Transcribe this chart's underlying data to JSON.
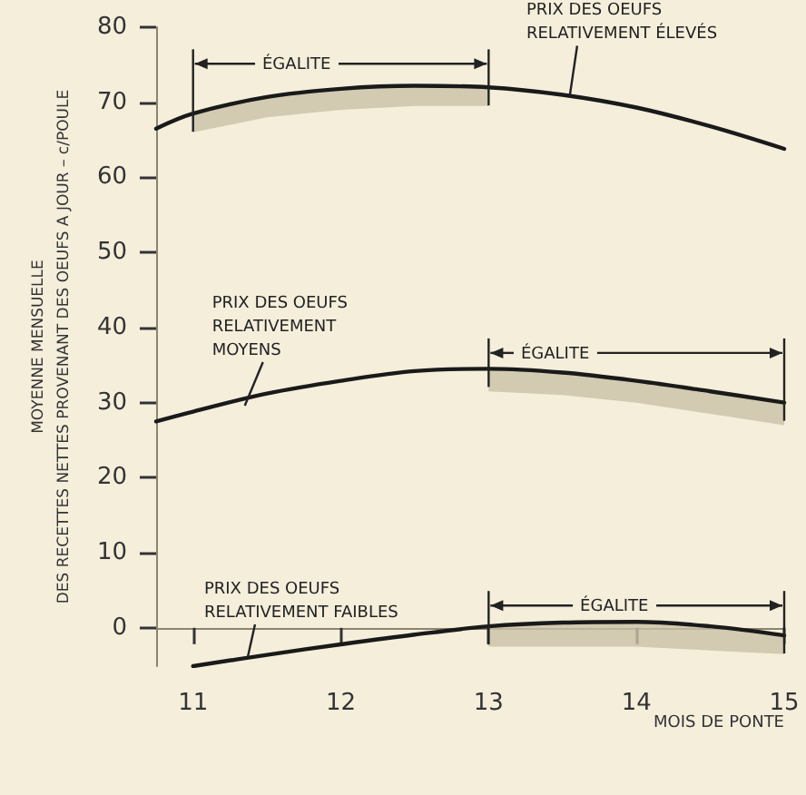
{
  "chart_data": {
    "type": "line",
    "xlabel": "MOIS DE PONTE",
    "ylabel": "MOYENNE MENSUELLE\nDES RECETTES NETTES PROVENANT DES OEUFS A JOUR – c/POULE",
    "series": [
      {
        "color": "#1a1a1a",
        "x": [
          10.75,
          11,
          11.5,
          12,
          12.5,
          13,
          13.5,
          14,
          14.5,
          15
        ],
        "values": [
          66.5,
          68.5,
          70.7,
          71.8,
          72.2,
          72,
          71,
          69.3,
          66.8,
          63.8
        ],
        "lower": [
          null,
          66,
          68,
          69,
          69.5,
          69.5,
          null,
          null,
          null,
          null
        ],
        "upper": [
          null,
          68.5,
          70.7,
          71.8,
          72.2,
          72,
          null,
          null,
          null,
          null
        ]
      },
      {
        "color": "#1a1a1a",
        "x": [
          10.75,
          11,
          11.5,
          12,
          12.5,
          13,
          13.5,
          14,
          14.5,
          15
        ],
        "values": [
          27.5,
          28.8,
          31.2,
          32.9,
          34.2,
          34.5,
          34,
          32.9,
          31.5,
          30
        ],
        "lower": [
          null,
          null,
          null,
          null,
          null,
          31.5,
          31,
          30,
          28.5,
          27
        ],
        "upper": [
          null,
          null,
          null,
          null,
          null,
          34.5,
          34,
          32.9,
          31.5,
          30
        ]
      },
      {
        "color": "#1a1a1a",
        "x": [
          11,
          11.5,
          12,
          12.5,
          13,
          13.5,
          14,
          14.5,
          15
        ],
        "values": [
          -5.1,
          -3.6,
          -2.2,
          -0.9,
          0.2,
          0.7,
          0.8,
          0.2,
          -1
        ],
        "lower": [
          null,
          null,
          null,
          null,
          -2.5,
          -2.5,
          -2.5,
          -3,
          -3.5
        ],
        "upper": [
          null,
          null,
          null,
          null,
          0.2,
          0.7,
          0.8,
          0.2,
          -1
        ]
      }
    ],
    "annotations": [
      {
        "text": "PRIX DES OEUFS\nRELATIVEMENT ÉLEVÉS",
        "x": 13.55,
        "y": 71
      },
      {
        "text": "ÉGALITE",
        "x": 11.7,
        "y": 71.5
      },
      {
        "text": "PRIX DES OEUFS\nRELATIVEMENT\nMOYENS",
        "x": 11.35,
        "y": 29.6
      },
      {
        "text": "ÉGALITE",
        "x": 13.45,
        "y": 34.2
      },
      {
        "text": "PRIX DES OEUFS\nRELATIVEMENT FAIBLES",
        "x": 11.37,
        "y": -3.9
      },
      {
        "text": "ÉGALITE",
        "x": 13.85,
        "y": 0.8
      }
    ],
    "xlim": [
      10.75,
      15
    ],
    "xticks": [
      11,
      12,
      13,
      14,
      15
    ],
    "ylim": [
      -5.1,
      80
    ],
    "yticks": [
      0,
      10,
      20,
      30,
      40,
      50,
      60,
      70,
      80
    ],
    "marker": "none",
    "line_style": "solid"
  }
}
